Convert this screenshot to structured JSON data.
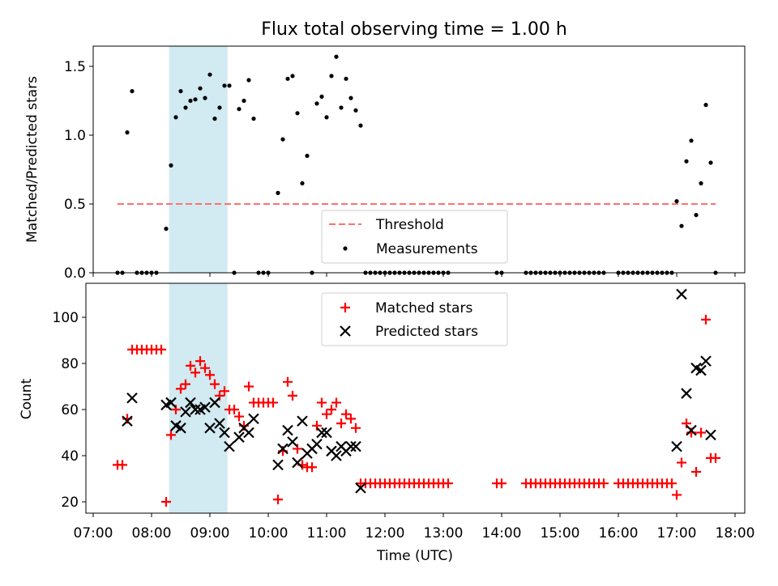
{
  "chart_data": [
    {
      "type": "scatter",
      "title": "Flux total observing time = 1.00 h",
      "xlabel": "",
      "ylabel": "Matched/Predicted stars",
      "xlim": [
        "07:00",
        "18:00"
      ],
      "ylim": [
        0,
        1.65
      ],
      "y_ticks": [
        "0.0",
        "0.5",
        "1.0",
        "1.5"
      ],
      "highlight_span": [
        "08:18",
        "09:18"
      ],
      "highlight_color": "#add8e6",
      "legend_placement": "lower-center",
      "threshold": {
        "name": "Threshold",
        "value": 0.5,
        "x_range": [
          "07:25",
          "17:40"
        ],
        "color": "#ff6f6f"
      },
      "series": [
        {
          "name": "Measurements",
          "color": "#000000",
          "points": [
            [
              "07:25",
              0
            ],
            [
              "07:30",
              0
            ],
            [
              "07:35",
              1.02
            ],
            [
              "07:40",
              1.32
            ],
            [
              "07:45",
              0
            ],
            [
              "07:50",
              0
            ],
            [
              "07:55",
              0
            ],
            [
              "08:00",
              0
            ],
            [
              "08:05",
              0
            ],
            [
              "08:15",
              0.32
            ],
            [
              "08:20",
              0.78
            ],
            [
              "08:25",
              1.13
            ],
            [
              "08:30",
              1.32
            ],
            [
              "08:35",
              1.2
            ],
            [
              "08:40",
              1.25
            ],
            [
              "08:45",
              1.26
            ],
            [
              "08:50",
              1.34
            ],
            [
              "08:55",
              1.27
            ],
            [
              "09:00",
              1.44
            ],
            [
              "09:05",
              1.12
            ],
            [
              "09:10",
              1.2
            ],
            [
              "09:15",
              1.36
            ],
            [
              "09:20",
              1.36
            ],
            [
              "09:25",
              0
            ],
            [
              "09:30",
              1.19
            ],
            [
              "09:35",
              1.25
            ],
            [
              "09:40",
              1.4
            ],
            [
              "09:45",
              1.12
            ],
            [
              "09:50",
              0
            ],
            [
              "09:55",
              0
            ],
            [
              "10:00",
              0
            ],
            [
              "10:10",
              0.58
            ],
            [
              "10:15",
              0.97
            ],
            [
              "10:20",
              1.41
            ],
            [
              "10:25",
              1.43
            ],
            [
              "10:30",
              1.16
            ],
            [
              "10:35",
              0.65
            ],
            [
              "10:40",
              0.85
            ],
            [
              "10:45",
              0
            ],
            [
              "10:50",
              1.23
            ],
            [
              "10:55",
              1.28
            ],
            [
              "11:00",
              1.13
            ],
            [
              "11:05",
              1.43
            ],
            [
              "11:10",
              1.57
            ],
            [
              "11:15",
              1.2
            ],
            [
              "11:20",
              1.41
            ],
            [
              "11:25",
              1.27
            ],
            [
              "11:30",
              1.18
            ],
            [
              "11:35",
              1.07
            ],
            [
              "11:40",
              0
            ],
            [
              "11:45",
              0
            ],
            [
              "11:50",
              0
            ],
            [
              "11:55",
              0
            ],
            [
              "12:00",
              0
            ],
            [
              "12:05",
              0
            ],
            [
              "12:10",
              0
            ],
            [
              "12:15",
              0
            ],
            [
              "12:20",
              0
            ],
            [
              "12:25",
              0
            ],
            [
              "12:30",
              0
            ],
            [
              "12:35",
              0
            ],
            [
              "12:40",
              0
            ],
            [
              "12:45",
              0
            ],
            [
              "12:50",
              0
            ],
            [
              "12:55",
              0
            ],
            [
              "13:00",
              0
            ],
            [
              "13:05",
              0
            ],
            [
              "13:55",
              0
            ],
            [
              "14:00",
              0
            ],
            [
              "14:25",
              0
            ],
            [
              "14:30",
              0
            ],
            [
              "14:35",
              0
            ],
            [
              "14:40",
              0
            ],
            [
              "14:45",
              0
            ],
            [
              "14:50",
              0
            ],
            [
              "14:55",
              0
            ],
            [
              "15:00",
              0
            ],
            [
              "15:05",
              0
            ],
            [
              "15:10",
              0
            ],
            [
              "15:15",
              0
            ],
            [
              "15:20",
              0
            ],
            [
              "15:25",
              0
            ],
            [
              "15:30",
              0
            ],
            [
              "15:35",
              0
            ],
            [
              "15:40",
              0
            ],
            [
              "15:45",
              0
            ],
            [
              "16:00",
              0
            ],
            [
              "16:05",
              0
            ],
            [
              "16:10",
              0
            ],
            [
              "16:15",
              0
            ],
            [
              "16:20",
              0
            ],
            [
              "16:25",
              0
            ],
            [
              "16:30",
              0
            ],
            [
              "16:35",
              0
            ],
            [
              "16:40",
              0
            ],
            [
              "16:45",
              0
            ],
            [
              "16:50",
              0
            ],
            [
              "16:55",
              0
            ],
            [
              "17:00",
              0.52
            ],
            [
              "17:05",
              0.34
            ],
            [
              "17:10",
              0.81
            ],
            [
              "17:15",
              0.96
            ],
            [
              "17:20",
              0.42
            ],
            [
              "17:25",
              0.65
            ],
            [
              "17:30",
              1.22
            ],
            [
              "17:35",
              0.8
            ],
            [
              "17:40",
              0
            ]
          ]
        }
      ]
    },
    {
      "type": "scatter",
      "title": "",
      "xlabel": "Time (UTC)",
      "ylabel": "Count",
      "xlim": [
        "07:00",
        "18:00"
      ],
      "ylim": [
        15,
        115
      ],
      "x_ticks": [
        "07:00",
        "08:00",
        "09:00",
        "10:00",
        "11:00",
        "12:00",
        "13:00",
        "14:00",
        "15:00",
        "16:00",
        "17:00",
        "18:00"
      ],
      "y_ticks": [
        "20",
        "40",
        "60",
        "80",
        "100"
      ],
      "highlight_span": [
        "08:18",
        "09:18"
      ],
      "highlight_color": "#add8e6",
      "legend_placement": "upper-center",
      "series": [
        {
          "name": "Matched stars",
          "color": "#ff0000",
          "points": [
            [
              "07:25",
              36
            ],
            [
              "07:30",
              36
            ],
            [
              "07:35",
              56
            ],
            [
              "07:40",
              86
            ],
            [
              "07:45",
              86
            ],
            [
              "07:50",
              86
            ],
            [
              "07:55",
              86
            ],
            [
              "08:00",
              86
            ],
            [
              "08:05",
              86
            ],
            [
              "08:10",
              86
            ],
            [
              "08:15",
              20
            ],
            [
              "08:20",
              49
            ],
            [
              "08:25",
              60
            ],
            [
              "08:30",
              69
            ],
            [
              "08:35",
              71
            ],
            [
              "08:40",
              79
            ],
            [
              "08:45",
              76
            ],
            [
              "08:50",
              81
            ],
            [
              "08:55",
              78
            ],
            [
              "09:00",
              75
            ],
            [
              "09:05",
              71
            ],
            [
              "09:10",
              66
            ],
            [
              "09:15",
              68
            ],
            [
              "09:20",
              60
            ],
            [
              "09:25",
              60
            ],
            [
              "09:30",
              57
            ],
            [
              "09:35",
              53
            ],
            [
              "09:40",
              70
            ],
            [
              "09:45",
              63
            ],
            [
              "09:50",
              63
            ],
            [
              "09:55",
              63
            ],
            [
              "10:00",
              63
            ],
            [
              "10:05",
              63
            ],
            [
              "10:10",
              21
            ],
            [
              "10:15",
              42
            ],
            [
              "10:20",
              72
            ],
            [
              "10:25",
              66
            ],
            [
              "10:30",
              43
            ],
            [
              "10:35",
              36
            ],
            [
              "10:40",
              35
            ],
            [
              "10:45",
              35
            ],
            [
              "10:50",
              53
            ],
            [
              "10:55",
              63
            ],
            [
              "11:00",
              58
            ],
            [
              "11:05",
              60
            ],
            [
              "11:10",
              63
            ],
            [
              "11:15",
              54
            ],
            [
              "11:20",
              58
            ],
            [
              "11:25",
              56
            ],
            [
              "11:30",
              52
            ],
            [
              "11:35",
              28
            ],
            [
              "11:40",
              28
            ],
            [
              "11:45",
              28
            ],
            [
              "11:50",
              28
            ],
            [
              "11:55",
              28
            ],
            [
              "12:00",
              28
            ],
            [
              "12:05",
              28
            ],
            [
              "12:10",
              28
            ],
            [
              "12:15",
              28
            ],
            [
              "12:20",
              28
            ],
            [
              "12:25",
              28
            ],
            [
              "12:30",
              28
            ],
            [
              "12:35",
              28
            ],
            [
              "12:40",
              28
            ],
            [
              "12:45",
              28
            ],
            [
              "12:50",
              28
            ],
            [
              "12:55",
              28
            ],
            [
              "13:00",
              28
            ],
            [
              "13:05",
              28
            ],
            [
              "13:55",
              28
            ],
            [
              "14:00",
              28
            ],
            [
              "14:25",
              28
            ],
            [
              "14:30",
              28
            ],
            [
              "14:35",
              28
            ],
            [
              "14:40",
              28
            ],
            [
              "14:45",
              28
            ],
            [
              "14:50",
              28
            ],
            [
              "14:55",
              28
            ],
            [
              "15:00",
              28
            ],
            [
              "15:05",
              28
            ],
            [
              "15:10",
              28
            ],
            [
              "15:15",
              28
            ],
            [
              "15:20",
              28
            ],
            [
              "15:25",
              28
            ],
            [
              "15:30",
              28
            ],
            [
              "15:35",
              28
            ],
            [
              "15:40",
              28
            ],
            [
              "15:45",
              28
            ],
            [
              "16:00",
              28
            ],
            [
              "16:05",
              28
            ],
            [
              "16:10",
              28
            ],
            [
              "16:15",
              28
            ],
            [
              "16:20",
              28
            ],
            [
              "16:25",
              28
            ],
            [
              "16:30",
              28
            ],
            [
              "16:35",
              28
            ],
            [
              "16:40",
              28
            ],
            [
              "16:45",
              28
            ],
            [
              "16:50",
              28
            ],
            [
              "16:55",
              28
            ],
            [
              "17:00",
              23
            ],
            [
              "17:05",
              37
            ],
            [
              "17:10",
              54
            ],
            [
              "17:15",
              50
            ],
            [
              "17:20",
              33
            ],
            [
              "17:25",
              50
            ],
            [
              "17:30",
              99
            ],
            [
              "17:35",
              39
            ],
            [
              "17:40",
              39
            ]
          ]
        },
        {
          "name": "Predicted stars",
          "color": "#000000",
          "points": [
            [
              "07:35",
              55
            ],
            [
              "07:40",
              65
            ],
            [
              "08:15",
              62
            ],
            [
              "08:20",
              63
            ],
            [
              "08:25",
              53
            ],
            [
              "08:30",
              52
            ],
            [
              "08:35",
              59
            ],
            [
              "08:40",
              63
            ],
            [
              "08:45",
              60
            ],
            [
              "08:50",
              60
            ],
            [
              "08:55",
              61
            ],
            [
              "09:00",
              52
            ],
            [
              "09:05",
              63
            ],
            [
              "09:10",
              54
            ],
            [
              "09:15",
              50
            ],
            [
              "09:20",
              44
            ],
            [
              "09:30",
              48
            ],
            [
              "09:35",
              52
            ],
            [
              "09:40",
              50
            ],
            [
              "09:45",
              56
            ],
            [
              "10:10",
              36
            ],
            [
              "10:15",
              43
            ],
            [
              "10:20",
              51
            ],
            [
              "10:25",
              46
            ],
            [
              "10:30",
              37
            ],
            [
              "10:35",
              55
            ],
            [
              "10:40",
              41
            ],
            [
              "10:45",
              43
            ],
            [
              "10:50",
              45
            ],
            [
              "10:55",
              50
            ],
            [
              "11:00",
              50
            ],
            [
              "11:05",
              42
            ],
            [
              "11:10",
              40
            ],
            [
              "11:15",
              44
            ],
            [
              "11:20",
              42
            ],
            [
              "11:25",
              44
            ],
            [
              "11:30",
              44
            ],
            [
              "11:35",
              26
            ],
            [
              "17:00",
              44
            ],
            [
              "17:05",
              110
            ],
            [
              "17:10",
              67
            ],
            [
              "17:15",
              51
            ],
            [
              "17:20",
              78
            ],
            [
              "17:25",
              77
            ],
            [
              "17:30",
              81
            ],
            [
              "17:35",
              49
            ]
          ]
        }
      ]
    }
  ]
}
